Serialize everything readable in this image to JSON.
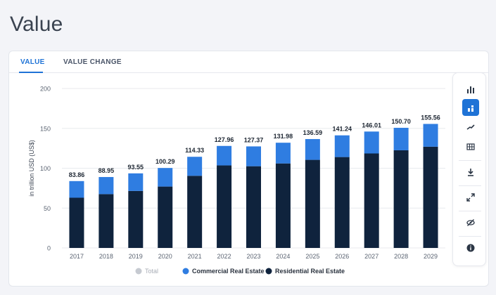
{
  "page": {
    "title": "Value"
  },
  "tabs": [
    {
      "label": "VALUE",
      "active": true
    },
    {
      "label": "VALUE CHANGE",
      "active": false
    }
  ],
  "colors": {
    "residential": "#0f233d",
    "commercial": "#2f7de1",
    "total": "#c6cad1",
    "accent": "#1f73d6"
  },
  "toolbar": {
    "buttons": [
      {
        "icon": "bar-chart-icon",
        "active": false
      },
      {
        "icon": "stacked-bar-icon",
        "active": true
      },
      {
        "icon": "trend-line-icon",
        "active": false
      },
      {
        "icon": "table-icon",
        "active": false
      },
      {
        "icon": "download-icon",
        "active": false
      },
      {
        "icon": "fullscreen-icon",
        "active": false
      },
      {
        "icon": "hide-icon",
        "active": false
      },
      {
        "icon": "info-icon",
        "active": false
      }
    ]
  },
  "chart_data": {
    "type": "bar",
    "stacked": true,
    "categories": [
      "2017",
      "2018",
      "2019",
      "2020",
      "2021",
      "2022",
      "2023",
      "2024",
      "2025",
      "2026",
      "2027",
      "2028",
      "2029"
    ],
    "ylabel": "in trillion USD (US$)",
    "xlabel": "",
    "ylim": [
      0,
      200
    ],
    "yticks": [
      0,
      50,
      100,
      150,
      200
    ],
    "grid": true,
    "legend_position": "bottom",
    "series": [
      {
        "name": "Residential Real Estate",
        "values": [
          63,
          67.5,
          71.5,
          77,
          90.5,
          103.5,
          102.5,
          106,
          110.5,
          114,
          118.5,
          122.5,
          127
        ]
      },
      {
        "name": "Commercial Real Estate",
        "values": [
          20.86,
          21.45,
          22.05,
          23.29,
          23.83,
          24.46,
          24.87,
          25.98,
          26.09,
          27.24,
          27.51,
          28.2,
          28.56
        ]
      }
    ],
    "totals_labels": [
      "83.86",
      "88.95",
      "93.55",
      "100.29",
      "114.33",
      "127.96",
      "127.37",
      "131.98",
      "136.59",
      "141.24",
      "146.01",
      "150.70",
      "155.56"
    ],
    "totals": [
      83.86,
      88.95,
      93.55,
      100.29,
      114.33,
      127.96,
      127.37,
      131.98,
      136.59,
      141.24,
      146.01,
      150.7,
      155.56
    ],
    "legend": [
      {
        "name": "Total",
        "color_key": "total",
        "muted": true
      },
      {
        "name": "Commercial Real Estate",
        "color_key": "commercial",
        "muted": false
      },
      {
        "name": "Residential Real Estate",
        "color_key": "residential",
        "muted": false
      }
    ]
  }
}
